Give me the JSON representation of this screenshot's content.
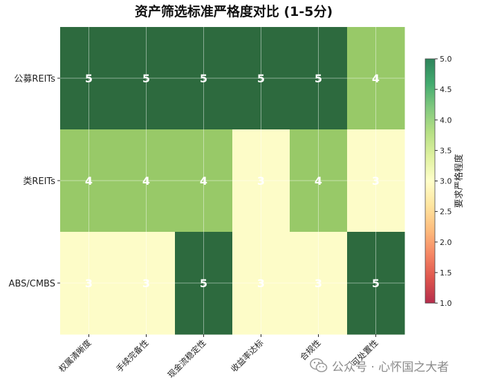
{
  "chart_data": {
    "type": "heatmap",
    "title": "资产筛选标准严格度对比 (1-5分)",
    "rows": [
      "公募REITs",
      "类REITs",
      "ABS/CMBS"
    ],
    "columns": [
      "权属清晰度",
      "手续完备性",
      "现金流稳定性",
      "收益率达标",
      "合规性",
      "可处置性"
    ],
    "values": [
      [
        5,
        5,
        5,
        5,
        5,
        4
      ],
      [
        4,
        4,
        4,
        3,
        4,
        3
      ],
      [
        3,
        3,
        5,
        3,
        3,
        5
      ]
    ],
    "colorbar": {
      "label": "要求严格程度",
      "min": 1.0,
      "max": 5.0,
      "ticks": [
        "1.0",
        "1.5",
        "2.0",
        "2.5",
        "3.0",
        "3.5",
        "4.0",
        "4.5",
        "5.0"
      ],
      "colormap": "RdYlGn"
    },
    "colors": {
      "5": "#2d6a3e",
      "4": "#98c968",
      "3": "#fdfcc8"
    },
    "grid": true
  },
  "watermark": {
    "icon": "wechat-icon",
    "text": "公众号 · 心怀国之大者"
  }
}
